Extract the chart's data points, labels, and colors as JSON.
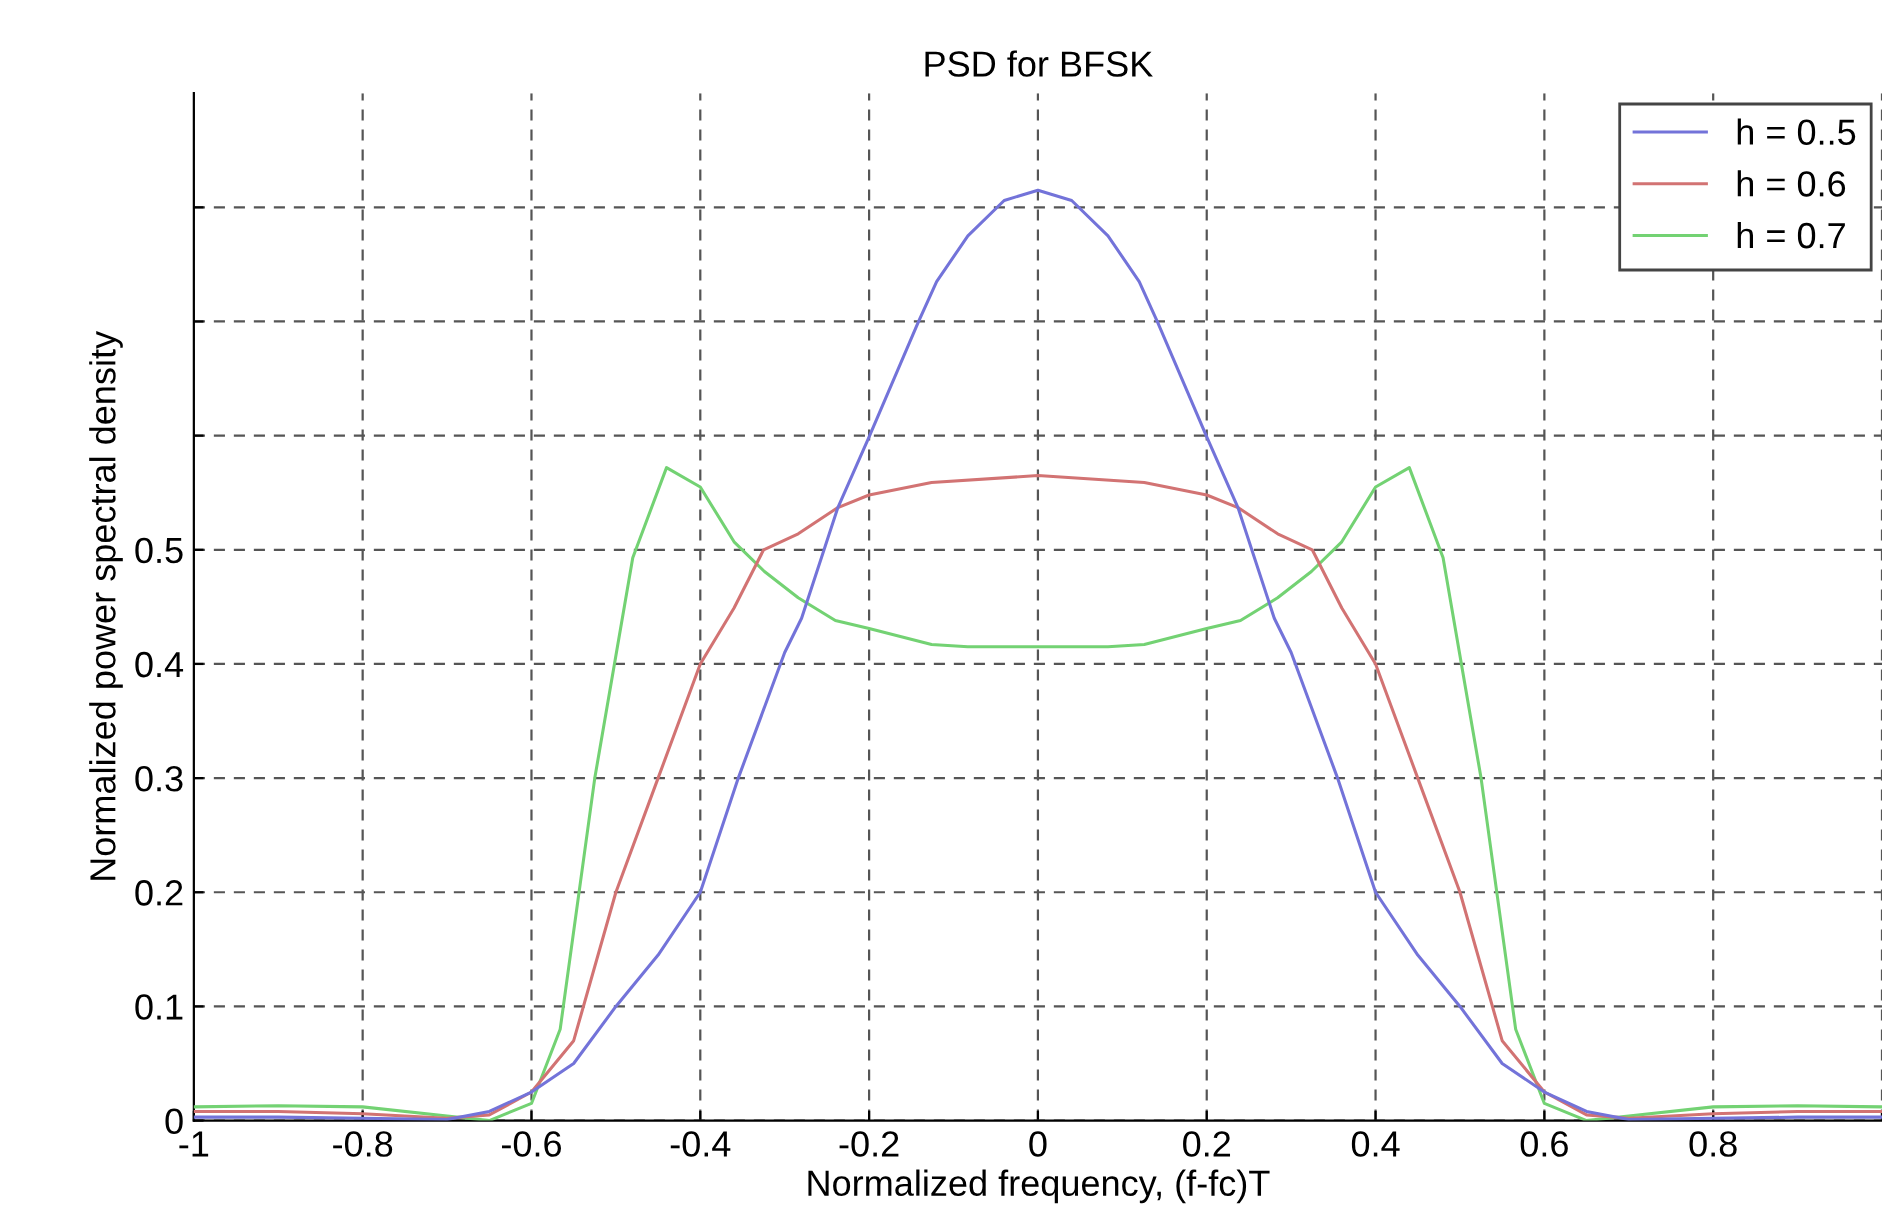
{
  "chart_data": {
    "type": "line",
    "title": "PSD for BFSK",
    "xlabel": "Normalized frequency, (f-fc)T",
    "ylabel": "Normalized power spectral density",
    "xlim": [
      -1,
      1
    ],
    "ylim": [
      0,
      0.9
    ],
    "xticks": [
      -1,
      -0.8,
      -0.6,
      -0.4,
      -0.2,
      0,
      0.2,
      0.4,
      0.6,
      0.8,
      {
        "value": 1,
        "label": null
      }
    ],
    "yticks": [
      0,
      0.1,
      0.2,
      0.3,
      0.4,
      0.5,
      {
        "value": 0.6,
        "label": null
      },
      {
        "value": 0.7,
        "label": null
      },
      {
        "value": 0.8,
        "label": null
      }
    ],
    "grid": true,
    "legend": "top right",
    "line_style": "solid",
    "series": [
      {
        "name": "h = 0..5",
        "color": "#7373d9",
        "x": [
          -1,
          -0.9,
          -0.8,
          -0.7,
          -0.65,
          -0.6,
          -0.55,
          -0.5,
          -0.45,
          -0.4,
          -0.355,
          -0.3,
          -0.28,
          -0.237,
          -0.2,
          -0.142,
          -0.12,
          -0.083,
          -0.04,
          0,
          0.04,
          0.083,
          0.12,
          0.142,
          0.2,
          0.237,
          0.28,
          0.3,
          0.355,
          0.4,
          0.45,
          0.5,
          0.55,
          0.6,
          0.65,
          0.7,
          0.8,
          0.9,
          1
        ],
        "values": [
          0.003,
          0.003,
          0.002,
          0.001,
          0.008,
          0.025,
          0.05,
          0.1,
          0.145,
          0.2,
          0.3,
          0.41,
          0.44,
          0.537,
          0.599,
          0.699,
          0.735,
          0.775,
          0.806,
          0.815,
          0.806,
          0.775,
          0.735,
          0.699,
          0.599,
          0.537,
          0.44,
          0.41,
          0.3,
          0.2,
          0.145,
          0.1,
          0.05,
          0.025,
          0.008,
          0.001,
          0.002,
          0.003,
          0.003
        ]
      },
      {
        "name": "h = 0.6",
        "color": "#d27373",
        "x": [
          -1,
          -0.9,
          -0.8,
          -0.7,
          -0.65,
          -0.6,
          -0.55,
          -0.5,
          -0.45,
          -0.4,
          -0.36,
          -0.325,
          -0.284,
          -0.237,
          -0.2,
          -0.126,
          0,
          0.126,
          0.2,
          0.237,
          0.284,
          0.325,
          0.36,
          0.4,
          0.45,
          0.5,
          0.55,
          0.6,
          0.65,
          0.7,
          0.8,
          0.9,
          1
        ],
        "values": [
          0.008,
          0.008,
          0.006,
          0.002,
          0.005,
          0.025,
          0.07,
          0.2,
          0.3,
          0.4,
          0.449,
          0.5,
          0.514,
          0.537,
          0.548,
          0.559,
          0.565,
          0.559,
          0.548,
          0.537,
          0.514,
          0.5,
          0.449,
          0.4,
          0.3,
          0.2,
          0.07,
          0.025,
          0.005,
          0.002,
          0.006,
          0.008,
          0.008
        ]
      },
      {
        "name": "h = 0.7",
        "color": "#73d273",
        "x": [
          -1,
          -0.9,
          -0.8,
          -0.7,
          -0.65,
          -0.6,
          -0.566,
          -0.525,
          -0.48,
          -0.44,
          -0.4,
          -0.36,
          -0.324,
          -0.284,
          -0.24,
          -0.2,
          -0.126,
          -0.083,
          0,
          0.083,
          0.126,
          0.2,
          0.24,
          0.284,
          0.324,
          0.36,
          0.4,
          0.44,
          0.48,
          0.525,
          0.566,
          0.6,
          0.65,
          0.7,
          0.8,
          0.9,
          1
        ],
        "values": [
          0.012,
          0.013,
          0.012,
          0.004,
          0.0,
          0.015,
          0.08,
          0.3,
          0.493,
          0.572,
          0.555,
          0.507,
          0.481,
          0.458,
          0.438,
          0.431,
          0.417,
          0.415,
          0.415,
          0.415,
          0.417,
          0.431,
          0.438,
          0.458,
          0.481,
          0.507,
          0.555,
          0.572,
          0.493,
          0.3,
          0.08,
          0.015,
          0.0,
          0.004,
          0.012,
          0.013,
          0.012
        ]
      }
    ]
  }
}
